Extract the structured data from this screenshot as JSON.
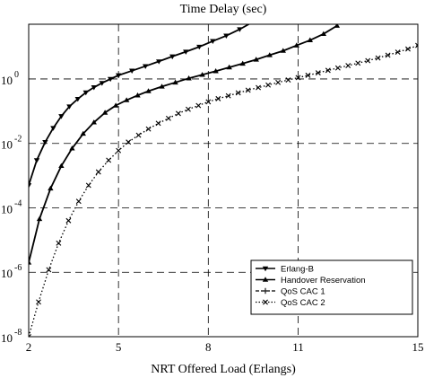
{
  "chart_data": {
    "type": "line",
    "title": "Time Delay (sec)",
    "xlabel": "NRT Offered Load (Erlangs)",
    "ylabel": "",
    "y_scale": "log",
    "xlim": [
      2,
      15
    ],
    "ylim": [
      1e-08,
      50
    ],
    "x_ticks": [
      2,
      5,
      8,
      11,
      15
    ],
    "x_tick_labels": [
      "2",
      "5",
      "8",
      "11",
      "15"
    ],
    "y_ticks": [
      1e-08,
      1e-06,
      0.0001,
      0.01,
      1
    ],
    "y_tick_labels": [
      {
        "base": "10",
        "exp": "-8"
      },
      {
        "base": "10",
        "exp": "-6"
      },
      {
        "base": "10",
        "exp": "-4"
      },
      {
        "base": "10",
        "exp": "-2"
      },
      {
        "base": "10",
        "exp": "0"
      }
    ],
    "grid": true,
    "legend_position": "bottom-right",
    "series": [
      {
        "name": "Erlang-B",
        "line_style": "solid",
        "marker": "triangle-down",
        "x": [
          2,
          2.27,
          2.55,
          2.82,
          3.09,
          3.36,
          3.64,
          3.91,
          4.18,
          4.45,
          4.73,
          5.0,
          5.45,
          5.9,
          6.35,
          6.8,
          7.25,
          7.7,
          8.15,
          8.6,
          9.05,
          9.5
        ],
        "y": [
          0.0005,
          0.003,
          0.011,
          0.03,
          0.07,
          0.14,
          0.24,
          0.38,
          0.55,
          0.75,
          1.0,
          1.3,
          1.8,
          2.5,
          3.5,
          5.0,
          7.0,
          10.0,
          15.0,
          22.0,
          35.0,
          60.0
        ]
      },
      {
        "name": "Handover Reservation",
        "line_style": "solid",
        "marker": "triangle-up",
        "x": [
          2,
          2.36,
          2.73,
          3.09,
          3.45,
          3.82,
          4.18,
          4.55,
          4.91,
          5.27,
          5.64,
          6.0,
          6.45,
          6.9,
          7.35,
          7.8,
          8.25,
          8.7,
          9.15,
          9.6,
          10.05,
          10.5,
          10.95,
          11.4,
          11.85,
          12.3
        ],
        "y": [
          2e-06,
          4.5e-05,
          0.0004,
          0.002,
          0.007,
          0.02,
          0.045,
          0.09,
          0.15,
          0.22,
          0.31,
          0.42,
          0.58,
          0.78,
          1.05,
          1.35,
          1.75,
          2.3,
          3.0,
          4.0,
          5.5,
          7.5,
          11.0,
          16.0,
          25.0,
          45.0
        ]
      },
      {
        "name": "QoS CAC 1",
        "line_style": "dashed",
        "marker": "plus",
        "x": [],
        "y": []
      },
      {
        "name": "QoS CAC 2",
        "line_style": "dotted",
        "marker": "x",
        "x": [
          2,
          2.33,
          2.67,
          3.0,
          3.33,
          3.67,
          4.0,
          4.33,
          4.67,
          5.0,
          5.33,
          5.67,
          6.0,
          6.33,
          6.67,
          7.0,
          7.33,
          7.67,
          8.0,
          8.33,
          8.67,
          9.0,
          9.33,
          9.67,
          10.0,
          10.33,
          10.67,
          11.0,
          11.33,
          11.67,
          12.0,
          12.33,
          12.67,
          13.0,
          13.33,
          13.67,
          14.0,
          14.33,
          14.67,
          15.0
        ],
        "y": [
          1e-08,
          1.2e-07,
          1.2e-06,
          8e-06,
          4e-05,
          0.00016,
          0.0005,
          0.0013,
          0.003,
          0.006,
          0.011,
          0.018,
          0.028,
          0.042,
          0.06,
          0.085,
          0.115,
          0.15,
          0.195,
          0.245,
          0.3,
          0.37,
          0.45,
          0.54,
          0.65,
          0.78,
          0.93,
          1.1,
          1.3,
          1.55,
          1.85,
          2.2,
          2.6,
          3.1,
          3.7,
          4.5,
          5.5,
          6.8,
          8.5,
          11.0
        ]
      }
    ]
  }
}
